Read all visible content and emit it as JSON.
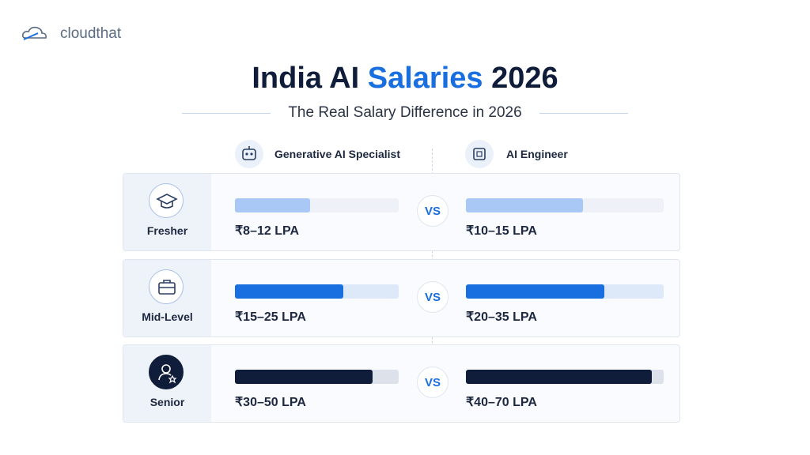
{
  "brand": "cloudthat",
  "header": {
    "title": {
      "prefix": "India AI",
      "highlight": "Salaries",
      "suffix": "2026"
    },
    "subtitle": "The Real Salary Difference in 2026"
  },
  "columns": [
    "Generative AI Specialist",
    "AI Engineer"
  ],
  "vs": "VS",
  "rows": [
    {
      "level": "Fresher",
      "gen_ai": {
        "label": "₹8–12 LPA",
        "bar": 46
      },
      "ai_engineer": {
        "label": "₹10–15 LPA",
        "bar": 59
      }
    },
    {
      "level": "Mid-Level",
      "gen_ai": {
        "label": "₹15–25 LPA",
        "bar": 66
      },
      "ai_engineer": {
        "label": "₹20–35 LPA",
        "bar": 70
      }
    },
    {
      "level": "Senior",
      "gen_ai": {
        "label": "₹30–50 LPA",
        "bar": 84
      },
      "ai_engineer": {
        "label": "₹40–70 LPA",
        "bar": 94
      }
    }
  ]
}
